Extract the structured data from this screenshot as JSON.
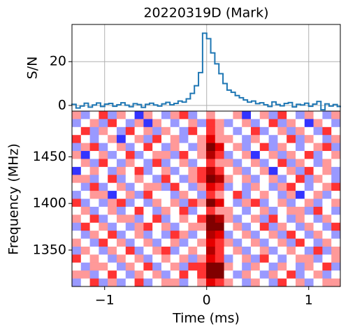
{
  "chart_data": [
    {
      "type": "line",
      "title": "20220319D (Mark)",
      "ylabel": "S/N",
      "color": "#1f77b4",
      "grid": true,
      "xlim": [
        -1.32,
        1.31
      ],
      "xticks": [
        {
          "value": -1,
          "label": "−1"
        },
        0,
        1
      ],
      "ylim": [
        -2.6,
        37
      ],
      "yticks": [
        0,
        20
      ],
      "x": [
        -1.3,
        -1.26,
        -1.22,
        -1.18,
        -1.14,
        -1.1,
        -1.06,
        -1.02,
        -0.98,
        -0.94,
        -0.9,
        -0.86,
        -0.82,
        -0.78,
        -0.74,
        -0.7,
        -0.66,
        -0.62,
        -0.58,
        -0.54,
        -0.5,
        -0.46,
        -0.42,
        -0.38,
        -0.34,
        -0.3,
        -0.26,
        -0.22,
        -0.18,
        -0.14,
        -0.1,
        -0.06,
        -0.02,
        0.02,
        0.06,
        0.1,
        0.14,
        0.18,
        0.22,
        0.26,
        0.3,
        0.34,
        0.38,
        0.42,
        0.46,
        0.5,
        0.54,
        0.58,
        0.62,
        0.66,
        0.7,
        0.74,
        0.78,
        0.82,
        0.86,
        0.9,
        0.94,
        0.98,
        1.02,
        1.06,
        1.1,
        1.14,
        1.18,
        1.22,
        1.26,
        1.3
      ],
      "values": [
        0.5,
        -1.2,
        -0.3,
        1.0,
        -0.8,
        0.2,
        1.1,
        -0.5,
        0.6,
        0.9,
        -0.4,
        0.3,
        1.2,
        0.1,
        -0.6,
        0.8,
        0.4,
        -0.9,
        0.5,
        1.0,
        0.2,
        -0.3,
        0.7,
        1.4,
        0.3,
        0.9,
        2.0,
        1.5,
        3.0,
        5.5,
        9.0,
        15.0,
        33.0,
        30.5,
        24.0,
        19.0,
        14.5,
        10.0,
        7.0,
        6.0,
        4.5,
        3.5,
        2.5,
        1.5,
        2.0,
        0.8,
        1.2,
        0.3,
        -0.5,
        1.6,
        0.4,
        -0.2,
        0.9,
        1.3,
        -0.7,
        0.5,
        0.2,
        1.0,
        -0.4,
        0.6,
        1.8,
        -2.0,
        0.7,
        -0.3,
        0.4,
        -0.5
      ]
    },
    {
      "type": "heatmap",
      "xlabel": "Time (ms)",
      "ylabel": "Frequency (MHz)",
      "colormap": "seismic",
      "clim": [
        -5,
        5
      ],
      "xlim": [
        -1.32,
        1.31
      ],
      "xticks": [
        {
          "value": -1,
          "label": "−1"
        },
        0,
        1
      ],
      "ylim": [
        1311,
        1499
      ],
      "yticks": [
        1350,
        1400,
        1450
      ],
      "z": [
        [
          1,
          -1,
          0,
          2,
          -1,
          1,
          0,
          -2,
          1,
          0,
          -1,
          1,
          2,
          -1,
          0,
          1,
          0,
          0,
          1,
          -2,
          0,
          1,
          -1,
          2,
          0,
          -1,
          1,
          0,
          -1,
          1
        ],
        [
          -1,
          0,
          1,
          -1,
          2,
          0,
          -1,
          1,
          -2,
          1,
          0,
          -1,
          0,
          1,
          -1,
          2,
          1,
          -1,
          0,
          1,
          -1,
          0,
          2,
          -1,
          1,
          0,
          -2,
          1,
          0,
          -1
        ],
        [
          0,
          2,
          -1,
          1,
          0,
          -1,
          2,
          0,
          1,
          -1,
          1,
          0,
          -1,
          2,
          0,
          2,
          1,
          0,
          -1,
          0,
          2,
          -1,
          0,
          1,
          -1,
          1,
          0,
          -1,
          2,
          0
        ],
        [
          2,
          0,
          -1,
          0,
          1,
          -2,
          0,
          1,
          -1,
          2,
          0,
          1,
          -1,
          0,
          1,
          3,
          1,
          1,
          0,
          -1,
          1,
          0,
          -1,
          0,
          2,
          -1,
          1,
          0,
          -1,
          1
        ],
        [
          -1,
          1,
          2,
          -1,
          0,
          1,
          -1,
          0,
          2,
          0,
          -1,
          1,
          0,
          -1,
          1,
          5,
          3,
          0,
          1,
          -1,
          0,
          2,
          -1,
          1,
          0,
          -1,
          0,
          1,
          2,
          -1
        ],
        [
          1,
          -2,
          0,
          1,
          -1,
          0,
          2,
          -1,
          0,
          1,
          1,
          -1,
          2,
          0,
          1,
          4,
          2,
          -1,
          0,
          1,
          -2,
          0,
          1,
          -1,
          1,
          0,
          2,
          -1,
          0,
          1
        ],
        [
          0,
          1,
          -1,
          2,
          0,
          -1,
          1,
          0,
          -1,
          2,
          -1,
          0,
          1,
          -1,
          0,
          2,
          1,
          1,
          -1,
          0,
          1,
          -1,
          0,
          2,
          -1,
          1,
          0,
          -1,
          1,
          0
        ],
        [
          -2,
          0,
          1,
          0,
          -1,
          1,
          0,
          2,
          -1,
          0,
          1,
          -1,
          0,
          1,
          2,
          4,
          2,
          0,
          1,
          -1,
          0,
          1,
          -2,
          0,
          1,
          -1,
          2,
          0,
          1,
          -1
        ],
        [
          1,
          1,
          -1,
          0,
          2,
          -1,
          0,
          1,
          0,
          -1,
          2,
          0,
          -1,
          1,
          2,
          5,
          4,
          1,
          0,
          1,
          -1,
          0,
          1,
          -1,
          0,
          2,
          -1,
          1,
          0,
          -1
        ],
        [
          0,
          -1,
          2,
          -1,
          0,
          1,
          -1,
          0,
          1,
          1,
          -1,
          2,
          0,
          -1,
          1,
          3,
          2,
          -1,
          0,
          -1,
          1,
          0,
          -1,
          1,
          2,
          0,
          -1,
          0,
          1,
          2
        ],
        [
          -1,
          0,
          1,
          1,
          -2,
          0,
          1,
          -1,
          2,
          0,
          0,
          -1,
          1,
          0,
          -1,
          2,
          1,
          0,
          2,
          -1,
          0,
          1,
          0,
          -1,
          1,
          -2,
          0,
          1,
          -1,
          0
        ],
        [
          2,
          -1,
          0,
          -1,
          1,
          2,
          -1,
          0,
          -1,
          1,
          0,
          1,
          -1,
          2,
          1,
          5,
          3,
          0,
          -1,
          1,
          2,
          -1,
          0,
          1,
          -1,
          0,
          1,
          -1,
          0,
          1
        ],
        [
          0,
          1,
          -1,
          0,
          1,
          -1,
          0,
          2,
          0,
          -1,
          1,
          0,
          2,
          -1,
          0,
          2,
          1,
          1,
          0,
          -1,
          0,
          1,
          -1,
          0,
          1,
          1,
          -1,
          2,
          0,
          -1
        ],
        [
          1,
          0,
          2,
          -1,
          0,
          1,
          1,
          -1,
          0,
          2,
          -1,
          0,
          1,
          0,
          2,
          6,
          4,
          1,
          -1,
          0,
          1,
          -1,
          2,
          0,
          -1,
          1,
          0,
          -1,
          1,
          0
        ],
        [
          -1,
          2,
          0,
          1,
          -1,
          0,
          -1,
          1,
          2,
          0,
          1,
          -1,
          0,
          1,
          1,
          6,
          5,
          0,
          1,
          -1,
          0,
          2,
          -1,
          1,
          0,
          -1,
          1,
          0,
          -1,
          2
        ],
        [
          0,
          -1,
          1,
          0,
          2,
          -1,
          0,
          1,
          -1,
          0,
          -1,
          2,
          1,
          -1,
          0,
          4,
          3,
          -1,
          0,
          1,
          -1,
          0,
          1,
          -1,
          2,
          0,
          -1,
          1,
          0,
          -1
        ],
        [
          1,
          0,
          -1,
          2,
          0,
          1,
          -1,
          0,
          1,
          -1,
          0,
          1,
          -1,
          0,
          1,
          3,
          2,
          1,
          -1,
          0,
          1,
          -1,
          0,
          1,
          -1,
          2,
          0,
          -1,
          1,
          0
        ],
        [
          -1,
          1,
          0,
          -1,
          1,
          0,
          2,
          -1,
          0,
          1,
          2,
          -1,
          0,
          1,
          0,
          4,
          2,
          0,
          1,
          -1,
          0,
          1,
          -1,
          0,
          1,
          0,
          -1,
          2,
          -1,
          1
        ],
        [
          2,
          0,
          1,
          0,
          -1,
          1,
          0,
          1,
          -1,
          0,
          1,
          0,
          1,
          -1,
          1,
          3,
          2,
          -1,
          0,
          1,
          -1,
          2,
          0,
          -1,
          0,
          1,
          1,
          -1,
          0,
          1
        ],
        [
          0,
          -1,
          1,
          1,
          0,
          -1,
          1,
          0,
          2,
          -1,
          0,
          1,
          -1,
          2,
          2,
          6,
          5,
          1,
          0,
          -1,
          1,
          0,
          -1,
          1,
          0,
          -1,
          1,
          0,
          2,
          -1
        ],
        [
          1,
          1,
          -1,
          0,
          2,
          0,
          -1,
          1,
          0,
          1,
          -1,
          0,
          2,
          0,
          2,
          7,
          5,
          0,
          -1,
          1,
          0,
          -1,
          1,
          0,
          2,
          -1,
          0,
          1,
          -1,
          0
        ],
        [
          -1,
          0,
          2,
          -1,
          1,
          -1,
          0,
          2,
          -1,
          0,
          1,
          1,
          -1,
          0,
          1,
          3,
          2,
          1,
          0,
          -1,
          1,
          0,
          -1,
          2,
          0,
          1,
          -1,
          0,
          1,
          1
        ]
      ]
    }
  ]
}
